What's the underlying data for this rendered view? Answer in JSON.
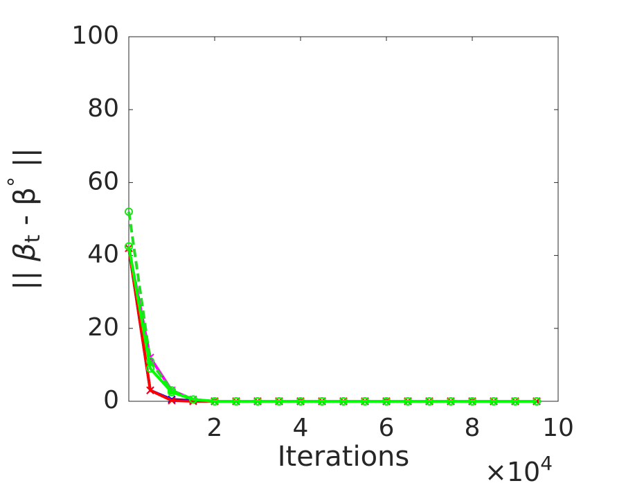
{
  "chart_data": {
    "type": "line",
    "ylabel": [
      "|| β",
      "t",
      " - β",
      "°",
      " ||"
    ],
    "xlabel": "Iterations",
    "x_scale_label": "×10",
    "x_scale_exponent": "4",
    "x": [
      0,
      0.5,
      1,
      1.5,
      2,
      2.5,
      3,
      3.5,
      4,
      4.5,
      5,
      5.5,
      6,
      6.5,
      7,
      7.5,
      8,
      8.5,
      9,
      9.5
    ],
    "xlim": [
      0,
      10
    ],
    "xticks": [
      2,
      4,
      6,
      8,
      10
    ],
    "ylim": [
      0,
      100
    ],
    "yticks": [
      0,
      20,
      40,
      60,
      80,
      100
    ],
    "series": [
      {
        "color": "#0000ff",
        "marker": "x",
        "dash": false,
        "values": [
          42,
          3,
          0.5,
          0.2,
          0,
          0,
          0,
          0,
          0,
          0,
          0,
          0,
          0,
          0,
          0,
          0,
          0,
          0,
          0,
          0
        ]
      },
      {
        "color": "#ff00ff",
        "marker": "x",
        "dash": false,
        "values": [
          42,
          12,
          3,
          0.5,
          0,
          0,
          0,
          0,
          0,
          0,
          0,
          0,
          0,
          0,
          0,
          0,
          0,
          0,
          0,
          0
        ]
      },
      {
        "color": "#ff0000",
        "marker": "x",
        "dash": false,
        "values": [
          42,
          3,
          0.2,
          0,
          0,
          0,
          0,
          0,
          0,
          0,
          0,
          0,
          0,
          0,
          0,
          0,
          0,
          0,
          0,
          0
        ]
      },
      {
        "color": "#22dd22",
        "marker": "o",
        "dash": true,
        "values": [
          52,
          11,
          3,
          0.5,
          0,
          0,
          0,
          0,
          0,
          0,
          0,
          0,
          0,
          0,
          0,
          0,
          0,
          0,
          0,
          0
        ]
      },
      {
        "color": "#00ff00",
        "marker": "o",
        "dash": false,
        "values": [
          42.5,
          9,
          2.5,
          0.5,
          0,
          0,
          0,
          0,
          0,
          0,
          0,
          0,
          0,
          0,
          0,
          0,
          0,
          0,
          0,
          0
        ]
      }
    ]
  }
}
